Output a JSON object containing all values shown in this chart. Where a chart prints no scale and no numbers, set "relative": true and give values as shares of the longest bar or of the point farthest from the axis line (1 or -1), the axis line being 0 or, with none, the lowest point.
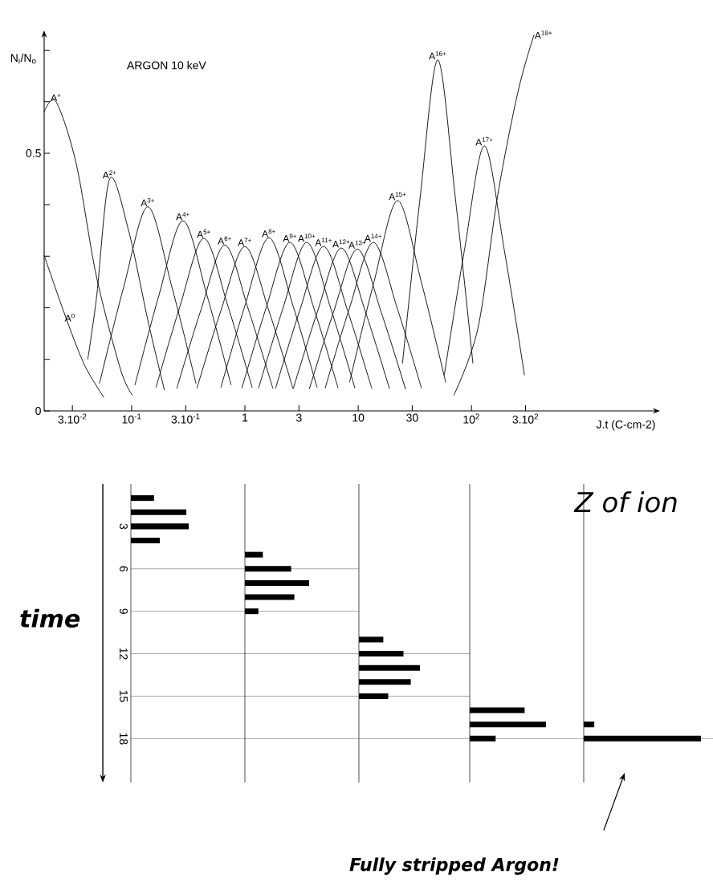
{
  "chart_data": [
    {
      "type": "line",
      "title": "ARGON   10 keV",
      "xlabel": "J.t (C-cm-2)",
      "ylabel": "N$_{i}$/N$_{o}$",
      "log": "x",
      "xlim": [
        0.0169,
        4470
      ],
      "ylim": [
        0,
        0.735
      ],
      "xticks": [
        {
          "value": 0.03,
          "label": "3.10$^{-2}$"
        },
        {
          "value": 0.1,
          "label": "10$^{-1}$"
        },
        {
          "value": 0.3,
          "label": "3.10$^{-1}$"
        },
        1,
        3,
        10,
        30,
        {
          "value": 100,
          "label": "10$^{2}$"
        },
        {
          "value": 300,
          "label": "3.10$^{2}$"
        }
      ],
      "yticks": [
        0,
        {
          "value": 0.1,
          "label": null
        },
        {
          "value": 0.2,
          "label": null
        },
        {
          "value": 0.3,
          "label": null
        },
        {
          "value": 0.4,
          "label": null
        },
        0.5,
        {
          "value": 0.6,
          "label": null
        },
        {
          "value": 0.7,
          "label": null
        }
      ],
      "series": [
        {
          "name": "A$^{0}$",
          "color": "#000000",
          "x": [
            0.0169,
            0.0254,
            0.0382,
            0.057
          ],
          "values": [
            0.302,
            0.19,
            0.09,
            0.026
          ]
        },
        {
          "name": "A$^{+}$",
          "color": "#000000",
          "x": [
            0.0169,
            0.0215,
            0.0324,
            0.049,
            0.08,
            0.102
          ],
          "values": [
            0.58,
            0.6,
            0.48,
            0.26,
            0.08,
            0.03
          ]
        },
        {
          "name": "A$^{2+}$",
          "color": "#000000",
          "x": [
            0.041,
            0.049,
            0.064,
            0.094,
            0.141,
            0.195
          ],
          "values": [
            0.1,
            0.22,
            0.45,
            0.35,
            0.17,
            0.04
          ]
        },
        {
          "name": "A$^{3+}$",
          "color": "#000000",
          "x": [
            0.052,
            0.085,
            0.139,
            0.227,
            0.37
          ],
          "values": [
            0.053,
            0.24,
            0.396,
            0.24,
            0.053
          ]
        },
        {
          "name": "A$^{4+}$",
          "color": "#000000",
          "x": [
            0.107,
            0.174,
            0.284,
            0.463,
            0.755
          ],
          "values": [
            0.05,
            0.224,
            0.369,
            0.224,
            0.05
          ]
        },
        {
          "name": "A$^{5+}$",
          "color": "#000000",
          "x": [
            0.164,
            0.267,
            0.435,
            0.709,
            1.16
          ],
          "values": [
            0.045,
            0.203,
            0.335,
            0.203,
            0.045
          ]
        },
        {
          "name": "A$^{6+}$",
          "color": "#000000",
          "x": [
            0.25,
            0.408,
            0.665,
            1.08,
            1.77
          ],
          "values": [
            0.043,
            0.195,
            0.322,
            0.195,
            0.043
          ]
        },
        {
          "name": "A$^{7+}$",
          "color": "#000000",
          "x": [
            0.376,
            0.613,
            1,
            1.63,
            2.66
          ],
          "values": [
            0.043,
            0.194,
            0.319,
            0.194,
            0.043
          ]
        },
        {
          "name": "A$^{8+}$",
          "color": "#000000",
          "x": [
            0.613,
            1,
            1.63,
            2.66,
            4.34
          ],
          "values": [
            0.045,
            0.204,
            0.336,
            0.204,
            0.045
          ]
        },
        {
          "name": "A$^{9+}$",
          "color": "#000000",
          "x": [
            0.94,
            1.53,
            2.5,
            4.08,
            6.65
          ],
          "values": [
            0.044,
            0.198,
            0.327,
            0.198,
            0.044
          ]
        },
        {
          "name": "A$^{10+}$",
          "color": "#000000",
          "x": [
            1.32,
            2.16,
            3.52,
            5.74,
            9.36
          ],
          "values": [
            0.044,
            0.198,
            0.327,
            0.198,
            0.044
          ]
        },
        {
          "name": "A$^{11+}$",
          "color": "#000000",
          "x": [
            1.86,
            3.04,
            4.96,
            8.08,
            13.2
          ],
          "values": [
            0.043,
            0.194,
            0.319,
            0.194,
            0.043
          ]
        },
        {
          "name": "A$^{12+}$",
          "color": "#000000",
          "x": [
            2.67,
            4.36,
            7.1,
            11.6,
            18.9
          ],
          "values": [
            0.043,
            0.192,
            0.316,
            0.192,
            0.043
          ]
        },
        {
          "name": "A$^{13+}$",
          "color": "#000000",
          "x": [
            3.7,
            6.04,
            9.84,
            16,
            26.2
          ],
          "values": [
            0.042,
            0.191,
            0.314,
            0.191,
            0.042
          ]
        },
        {
          "name": "A$^{14+}$",
          "color": "#000000",
          "x": [
            5.11,
            8.34,
            13.6,
            22.2,
            36.2
          ],
          "values": [
            0.044,
            0.198,
            0.327,
            0.198,
            0.044
          ]
        },
        {
          "name": "A$^{15+}$",
          "color": "#000000",
          "x": [
            8.38,
            13.7,
            22.3,
            36.3,
            59.3
          ],
          "values": [
            0.055,
            0.248,
            0.408,
            0.248,
            0.055
          ]
        },
        {
          "name": "A$^{16+}$",
          "color": "#000000",
          "x": [
            24.6,
            35.2,
            50.4,
            72.1,
            103
          ],
          "values": [
            0.092,
            0.413,
            0.681,
            0.413,
            0.092
          ]
        },
        {
          "name": "A$^{17+}$",
          "color": "#000000",
          "x": [
            57.5,
            86.7,
            130,
            195,
            294
          ],
          "values": [
            0.069,
            0.312,
            0.514,
            0.312,
            0.069
          ]
        },
        {
          "name": "A$^{18+}$",
          "color": "#000000",
          "x": [
            69.8,
            114,
            171,
            258,
            357
          ],
          "values": [
            0.03,
            0.16,
            0.42,
            0.62,
            0.73
          ]
        }
      ]
    },
    {
      "type": "bar",
      "orientation": "horizontal",
      "relative": true,
      "ylabel": "time",
      "ylim": [
        21.1,
        0
      ],
      "yticks": [
        3,
        6,
        9,
        12,
        15,
        18
      ],
      "ref_lines": [
        {
          "axis": "y",
          "value": 6
        },
        {
          "axis": "y",
          "value": 9
        },
        {
          "axis": "y",
          "value": 12
        },
        {
          "axis": "y",
          "value": 15
        },
        {
          "axis": "y",
          "value": 18
        }
      ],
      "series": [
        {
          "color": "#000000",
          "x": [
            1,
            2,
            3,
            4
          ],
          "values": [
            0.4,
            0.96,
            1,
            0.5
          ]
        }
      ]
    },
    {
      "type": "bar",
      "orientation": "horizontal",
      "relative": true,
      "ylim": [
        21.1,
        0
      ],
      "ref_lines": [
        {
          "axis": "y",
          "value": 6
        },
        {
          "axis": "y",
          "value": 9
        },
        {
          "axis": "y",
          "value": 12
        },
        {
          "axis": "y",
          "value": 15
        },
        {
          "axis": "y",
          "value": 18
        }
      ],
      "series": [
        {
          "color": "#000000",
          "x": [
            5,
            6,
            7,
            8,
            9
          ],
          "values": [
            0.28,
            0.72,
            1,
            0.77,
            0.21
          ]
        }
      ]
    },
    {
      "type": "bar",
      "orientation": "horizontal",
      "relative": true,
      "ylim": [
        21.1,
        0
      ],
      "ref_lines": [
        {
          "axis": "y",
          "value": 12
        },
        {
          "axis": "y",
          "value": 15
        },
        {
          "axis": "y",
          "value": 18
        }
      ],
      "series": [
        {
          "color": "#000000",
          "x": [
            11,
            12,
            13,
            14,
            15
          ],
          "values": [
            0.4,
            0.73,
            1,
            0.85,
            0.48
          ]
        }
      ]
    },
    {
      "type": "bar",
      "orientation": "horizontal",
      "relative": true,
      "ylim": [
        21.1,
        0
      ],
      "ref_lines": [
        {
          "axis": "y",
          "value": 18
        }
      ],
      "series": [
        {
          "color": "#000000",
          "x": [
            16,
            17,
            18
          ],
          "values": [
            0.72,
            1,
            0.34
          ]
        }
      ]
    },
    {
      "type": "bar",
      "orientation": "horizontal",
      "relative": true,
      "ylim": [
        21.1,
        0
      ],
      "ref_lines": [
        {
          "axis": "y",
          "value": 18
        }
      ],
      "annotations": [
        "Z of ion",
        "Fully stripped Argon!"
      ],
      "series": [
        {
          "color": "#000000",
          "x": [
            17,
            18
          ],
          "values": [
            0.09,
            1
          ]
        }
      ]
    }
  ]
}
